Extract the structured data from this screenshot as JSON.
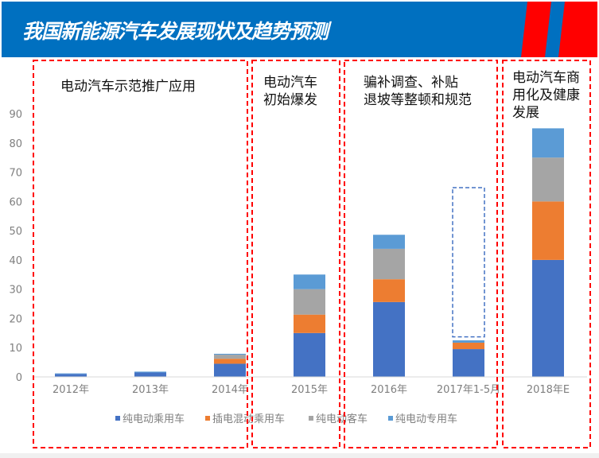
{
  "header": {
    "title": "我国新能源汽车发展现状及趋势预测",
    "colors": {
      "background": "#0070c0",
      "stripes": "#ff0000"
    }
  },
  "annotations": [
    {
      "text": "电动汽车示范推广应用"
    },
    {
      "text": "电动汽车\n初始爆发"
    },
    {
      "text": "骗补调查、补贴\n退坡等整顿和规范"
    },
    {
      "text": "电动汽车商\n用化及健康\n发展"
    }
  ],
  "chart_data": {
    "type": "bar",
    "stacked": true,
    "title": "",
    "xlabel": "",
    "ylabel": "",
    "ylim": [
      0,
      90
    ],
    "yticks": [
      0,
      10,
      20,
      30,
      40,
      50,
      60,
      70,
      80,
      90
    ],
    "grid": false,
    "legend_position": "bottom",
    "categories": [
      "2012年",
      "2013年",
      "2014年",
      "2015年",
      "2016年",
      "2017年1-5月",
      "2018年E"
    ],
    "series": [
      {
        "name": "纯电动乘用车",
        "color": "#4472c4",
        "values": [
          1.0,
          1.5,
          4.5,
          15,
          25.6,
          9.5,
          40
        ]
      },
      {
        "name": "插电混动乘用车",
        "color": "#ed7d31",
        "values": [
          0,
          0,
          1.7,
          6.3,
          7.8,
          2.2,
          20
        ]
      },
      {
        "name": "纯电动客车",
        "color": "#a5a5a5",
        "values": [
          0,
          0,
          1.4,
          8.7,
          10.4,
          0,
          15
        ]
      },
      {
        "name": "纯电动专用车",
        "color": "#5b9bd5",
        "values": [
          0.2,
          0.3,
          0.3,
          5,
          4.8,
          0.8,
          10
        ]
      }
    ],
    "highlight_box": {
      "category": "2017年1-5月",
      "range": [
        13.7,
        64.7
      ],
      "color": "#4472c4",
      "style": "dashed"
    }
  }
}
